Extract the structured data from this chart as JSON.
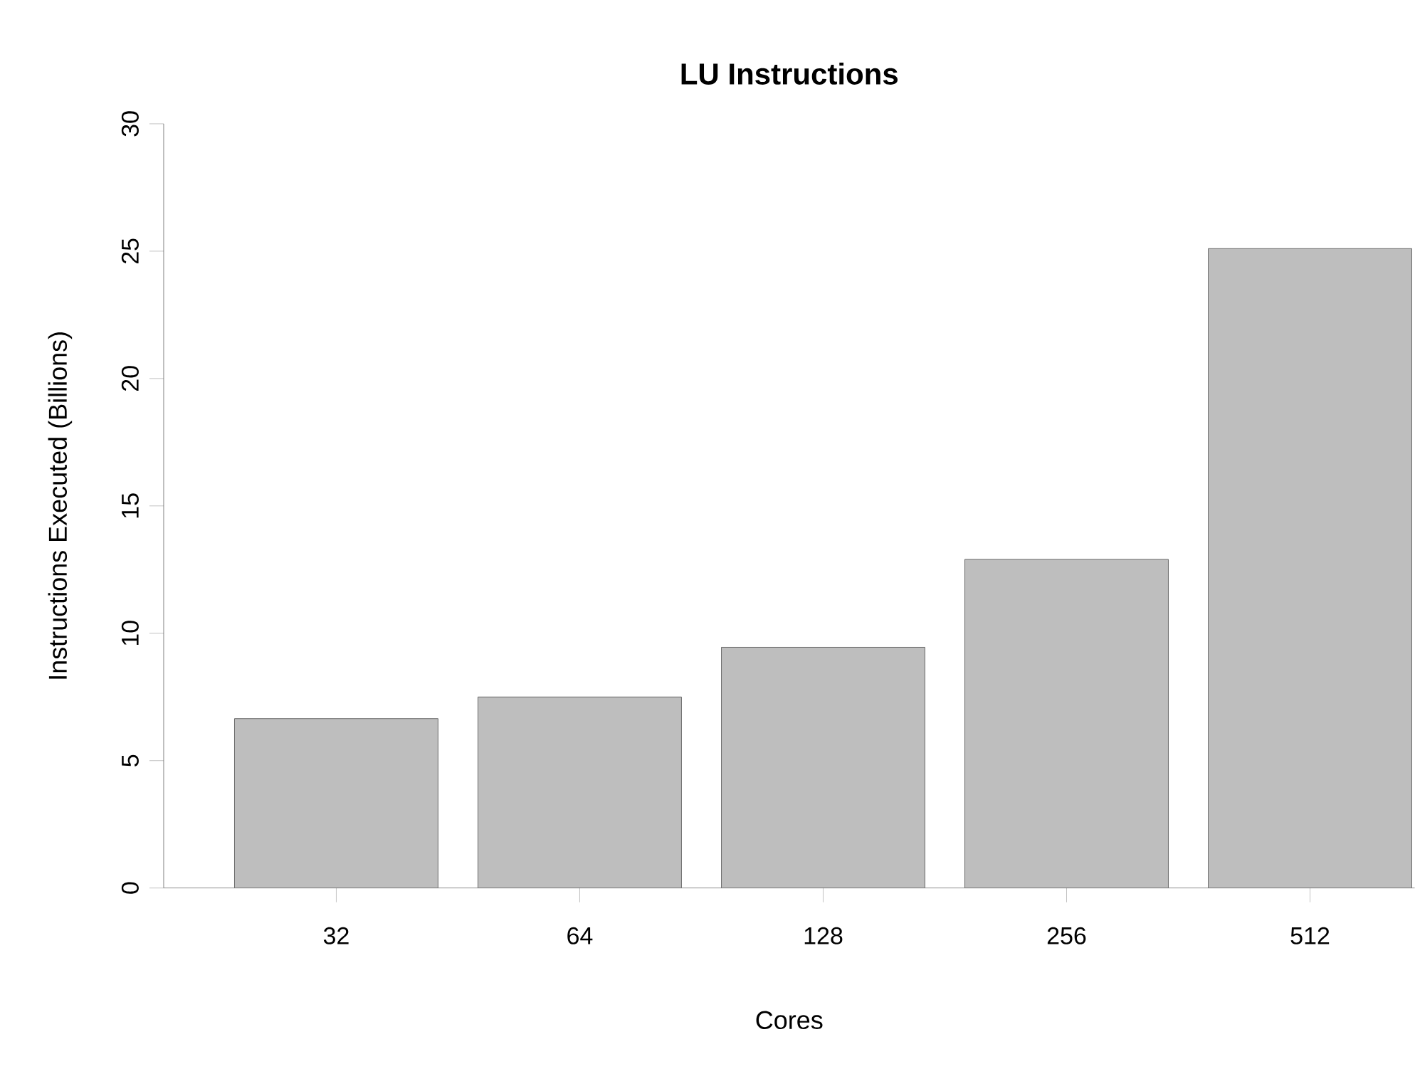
{
  "chart_data": {
    "type": "bar",
    "title": "LU Instructions",
    "xlabel": "Cores",
    "ylabel": "Instructions Executed (Billions)",
    "categories": [
      "32",
      "64",
      "128",
      "256",
      "512"
    ],
    "values": [
      6.65,
      7.5,
      9.45,
      12.9,
      25.1
    ],
    "color": "#bebebe",
    "ylim": [
      0,
      30
    ],
    "yticks": [
      0,
      5,
      10,
      15,
      20,
      25,
      30
    ]
  }
}
